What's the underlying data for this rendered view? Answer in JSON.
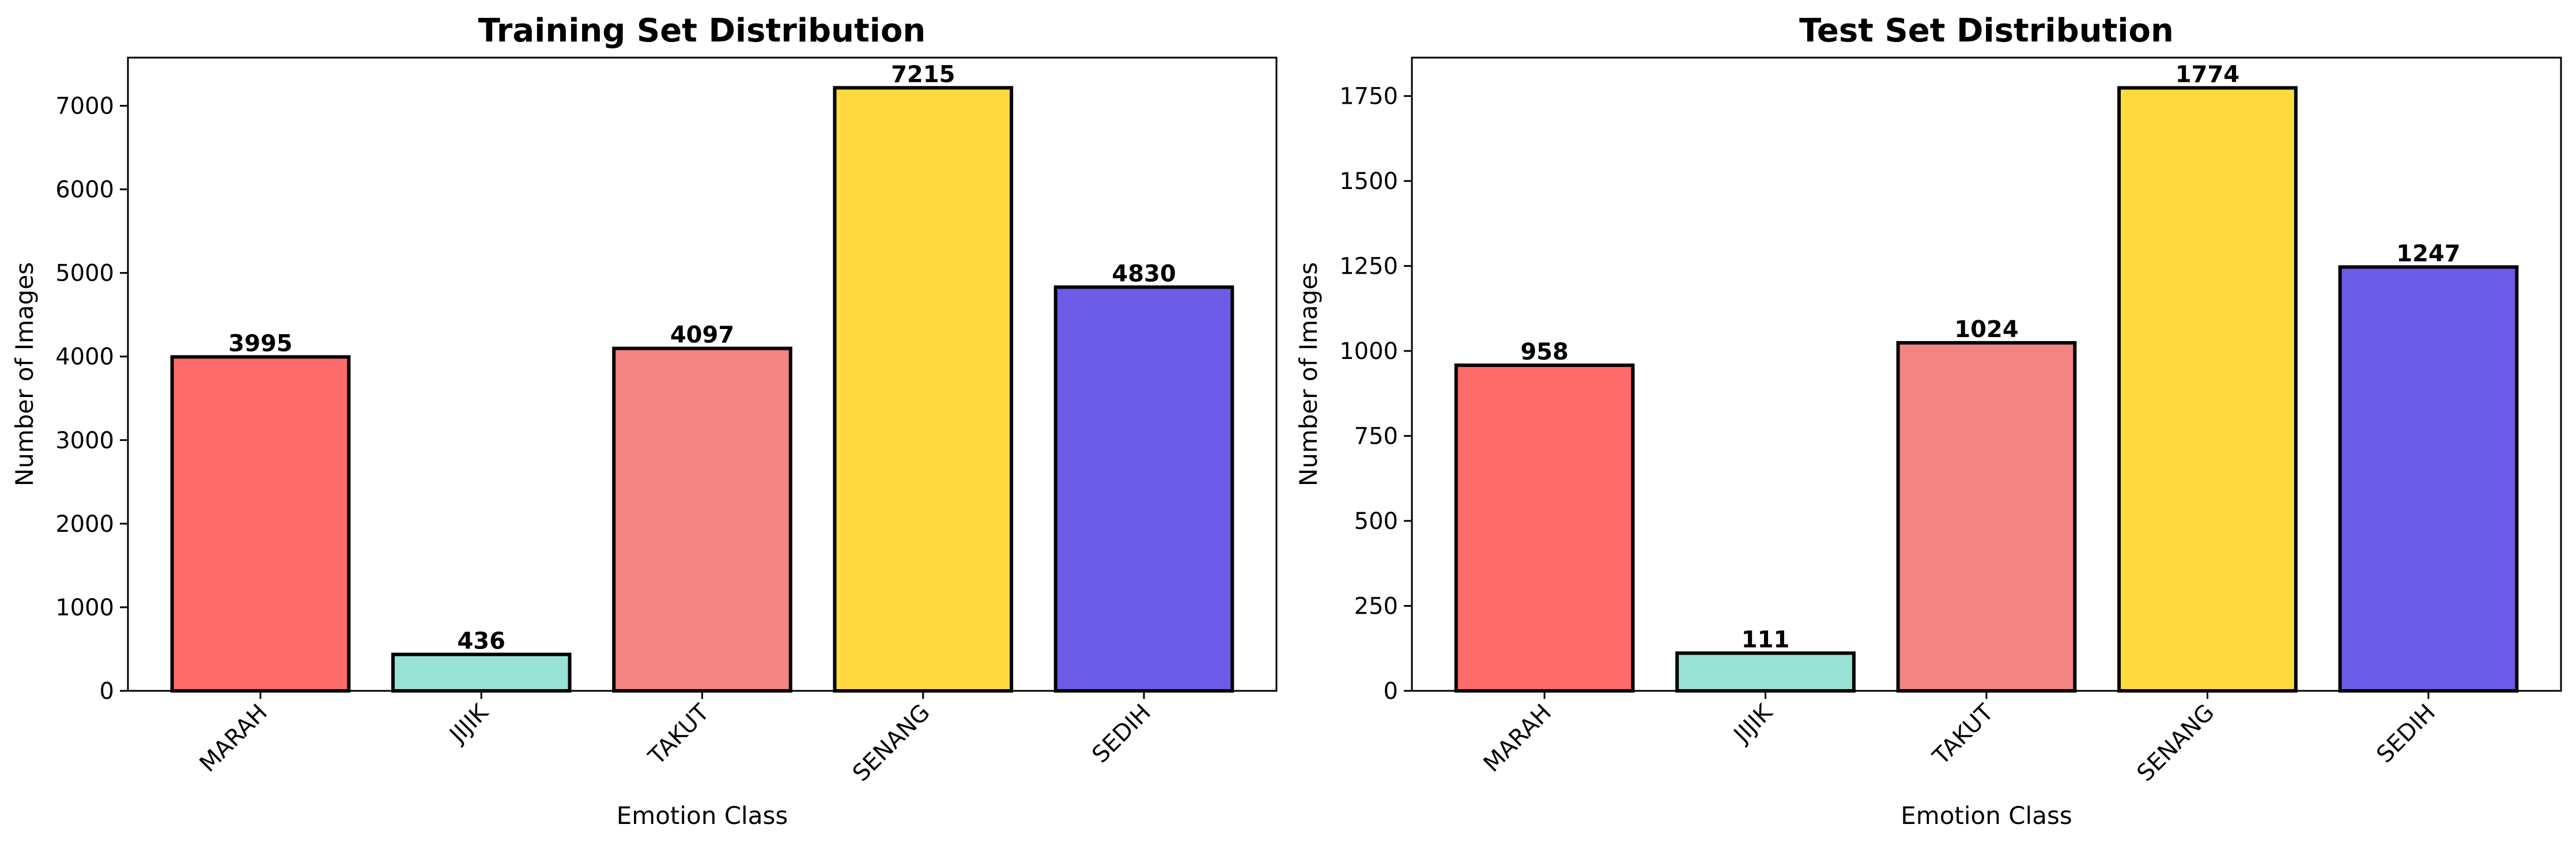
{
  "chart_data": [
    {
      "type": "bar",
      "title": "Training Set Distribution",
      "xlabel": "Emotion Class",
      "ylabel": "Number of Images",
      "categories": [
        "MARAH",
        "JIJIK",
        "TAKUT",
        "SENANG",
        "SEDIH"
      ],
      "values": [
        3995,
        436,
        4097,
        7215,
        4830
      ],
      "value_labels": [
        "3995",
        "436",
        "4097",
        "7215",
        "4830"
      ],
      "colors": [
        "#ff6b6b",
        "#98e2d6",
        "#f28482",
        "#ffd93d",
        "#6c5ce7"
      ],
      "ylim": [
        0,
        7576
      ],
      "yticks": [
        0,
        1000,
        2000,
        3000,
        4000,
        5000,
        6000,
        7000
      ],
      "ytick_labels": [
        "0",
        "1000",
        "2000",
        "3000",
        "4000",
        "5000",
        "6000",
        "7000"
      ],
      "grid": false,
      "legend": "none"
    },
    {
      "type": "bar",
      "title": "Test Set Distribution",
      "xlabel": "Emotion Class",
      "ylabel": "Number of Images",
      "categories": [
        "MARAH",
        "JIJIK",
        "TAKUT",
        "SENANG",
        "SEDIH"
      ],
      "values": [
        958,
        111,
        1024,
        1774,
        1247
      ],
      "value_labels": [
        "958",
        "111",
        "1024",
        "1774",
        "1247"
      ],
      "colors": [
        "#ff6b6b",
        "#98e2d6",
        "#f28482",
        "#ffd93d",
        "#6c5ce7"
      ],
      "ylim": [
        0,
        1863
      ],
      "yticks": [
        0,
        250,
        500,
        750,
        1000,
        1250,
        1500,
        1750
      ],
      "ytick_labels": [
        "0",
        "250",
        "500",
        "750",
        "1000",
        "1250",
        "1500",
        "1750"
      ],
      "grid": false,
      "legend": "none"
    }
  ]
}
